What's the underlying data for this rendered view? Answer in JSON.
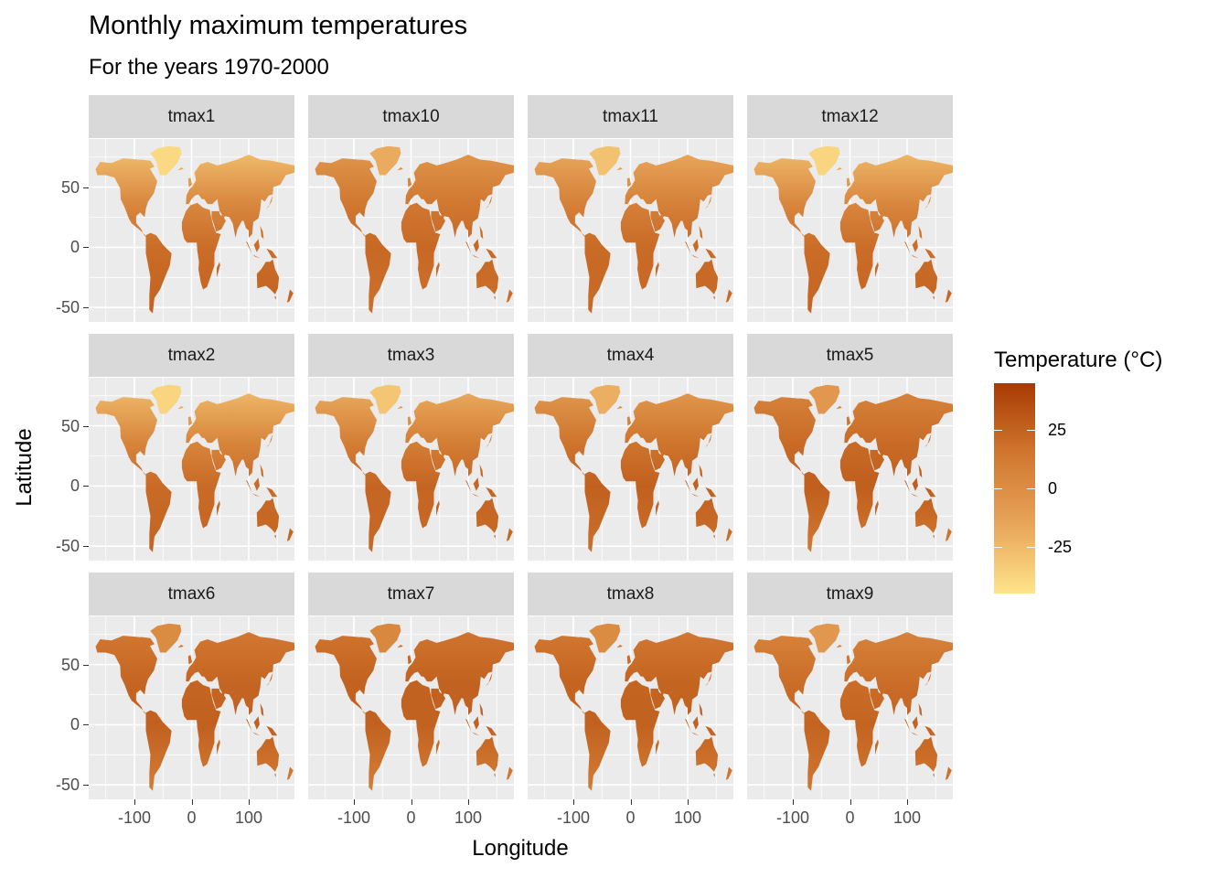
{
  "chart_data": {
    "type": "heatmap",
    "title": "Monthly maximum temperatures",
    "subtitle": "For the years 1970-2000",
    "xlabel": "Longitude",
    "ylabel": "Latitude",
    "x_ticks": [
      -100,
      0,
      100
    ],
    "y_ticks": [
      50,
      0,
      -50
    ],
    "xlim": [
      -180,
      180
    ],
    "ylim": [
      -62,
      90
    ],
    "legend": {
      "title": "Temperature (°C)",
      "ticks": [
        25,
        0,
        -25
      ],
      "range": [
        -45,
        45
      ],
      "colors": [
        "#FFE48C",
        "#E8A55A",
        "#D0762F",
        "#A83B03"
      ],
      "placement": "right"
    },
    "panels": [
      {
        "label": "tmax1",
        "north": 0.18,
        "mid": 0.55,
        "tropic": 0.72,
        "south": 0.78
      },
      {
        "label": "tmax10",
        "north": 0.42,
        "mid": 0.66,
        "tropic": 0.74,
        "south": 0.7
      },
      {
        "label": "tmax11",
        "north": 0.3,
        "mid": 0.6,
        "tropic": 0.73,
        "south": 0.74
      },
      {
        "label": "tmax12",
        "north": 0.2,
        "mid": 0.56,
        "tropic": 0.72,
        "south": 0.77
      },
      {
        "label": "tmax2",
        "north": 0.2,
        "mid": 0.57,
        "tropic": 0.73,
        "south": 0.77
      },
      {
        "label": "tmax3",
        "north": 0.28,
        "mid": 0.62,
        "tropic": 0.76,
        "south": 0.74
      },
      {
        "label": "tmax4",
        "north": 0.4,
        "mid": 0.68,
        "tropic": 0.79,
        "south": 0.7
      },
      {
        "label": "tmax5",
        "north": 0.55,
        "mid": 0.73,
        "tropic": 0.8,
        "south": 0.64
      },
      {
        "label": "tmax6",
        "north": 0.63,
        "mid": 0.76,
        "tropic": 0.79,
        "south": 0.61
      },
      {
        "label": "tmax7",
        "north": 0.66,
        "mid": 0.78,
        "tropic": 0.78,
        "south": 0.6
      },
      {
        "label": "tmax8",
        "north": 0.63,
        "mid": 0.77,
        "tropic": 0.78,
        "south": 0.62
      },
      {
        "label": "tmax9",
        "north": 0.55,
        "mid": 0.72,
        "tropic": 0.77,
        "south": 0.66
      }
    ]
  }
}
